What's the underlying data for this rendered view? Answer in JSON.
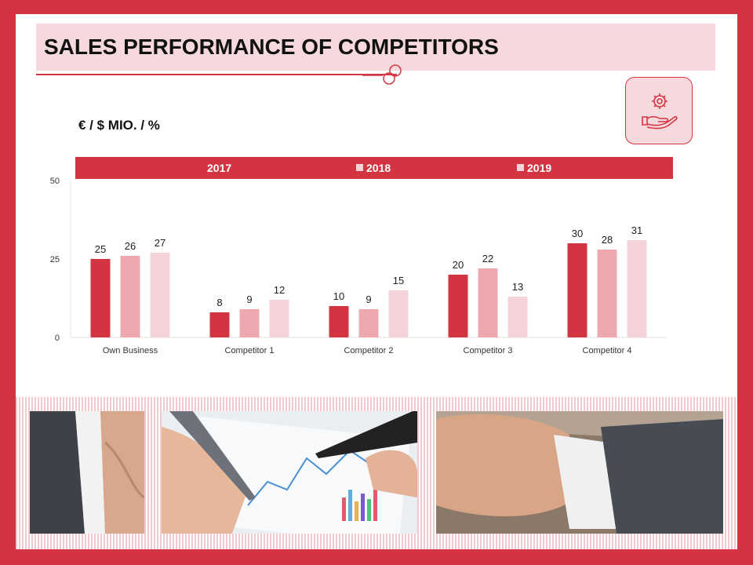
{
  "slide": {
    "title": "SALES PERFORMANCE OF COMPETITORS",
    "unit_label": "€ / $ MIO. / %",
    "icon": "gear-hand-icon"
  },
  "colors": {
    "accent": "#d33442",
    "title_bg": "#f6d9dd",
    "series": [
      "#d33442",
      "#eda9b0",
      "#f6d3d8"
    ]
  },
  "chart_data": {
    "type": "bar",
    "categories": [
      "Own Business",
      "Competitor 1",
      "Competitor 2",
      "Competitor 3",
      "Competitor 4"
    ],
    "series": [
      {
        "name": "2017",
        "values": [
          25,
          8,
          10,
          20,
          30
        ]
      },
      {
        "name": "2018",
        "values": [
          26,
          9,
          9,
          22,
          28
        ]
      },
      {
        "name": "2019",
        "values": [
          27,
          12,
          15,
          13,
          31
        ]
      }
    ],
    "ylim": [
      0,
      50
    ],
    "yticks": [
      0,
      25,
      50
    ],
    "legend_position": "top",
    "grid": false,
    "data_labels": true
  },
  "photos": [
    {
      "icon": "shirt-cuff-photo"
    },
    {
      "icon": "hands-writing-on-chart-photo"
    },
    {
      "icon": "hand-on-desk-photo"
    }
  ]
}
